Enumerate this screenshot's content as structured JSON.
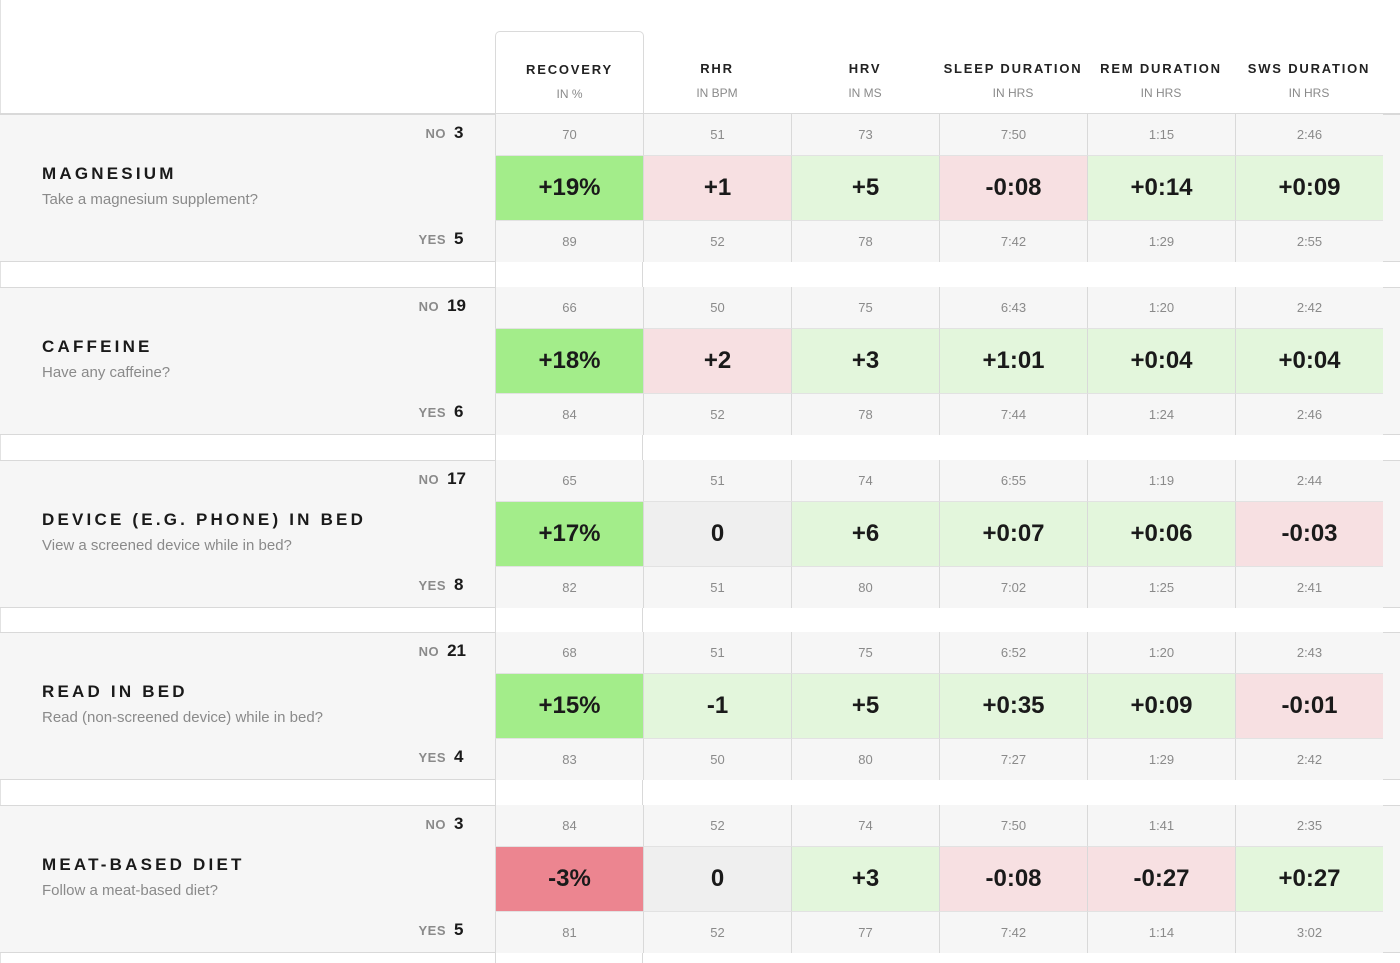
{
  "colors": {
    "strong_green": "#a3ed8a",
    "light_green": "#e3f6dc",
    "light_pink": "#f7e0e2",
    "strong_pink": "#ec8590",
    "neutral_gray": "#efefef"
  },
  "columns": [
    {
      "title": "RECOVERY",
      "unit": "IN %"
    },
    {
      "title": "RHR",
      "unit": "IN BPM"
    },
    {
      "title": "HRV",
      "unit": "IN MS"
    },
    {
      "title": "SLEEP DURATION",
      "unit": "IN HRS"
    },
    {
      "title": "REM DURATION",
      "unit": "IN HRS"
    },
    {
      "title": "SWS DURATION",
      "unit": "IN HRS"
    }
  ],
  "no_label": "NO",
  "yes_label": "YES",
  "behaviors": [
    {
      "title": "MAGNESIUM",
      "question": "Take a magnesium supplement?",
      "no_count": "3",
      "yes_count": "5",
      "no_values": [
        "70",
        "51",
        "73",
        "7:50",
        "1:15",
        "2:46"
      ],
      "diffs": [
        "+19%",
        "+1",
        "+5",
        "-0:08",
        "+0:14",
        "+0:09"
      ],
      "diff_colors": [
        "strong_green",
        "light_pink",
        "light_green",
        "light_pink",
        "light_green",
        "light_green"
      ],
      "yes_values": [
        "89",
        "52",
        "78",
        "7:42",
        "1:29",
        "2:55"
      ]
    },
    {
      "title": "CAFFEINE",
      "question": "Have any caffeine?",
      "no_count": "19",
      "yes_count": "6",
      "no_values": [
        "66",
        "50",
        "75",
        "6:43",
        "1:20",
        "2:42"
      ],
      "diffs": [
        "+18%",
        "+2",
        "+3",
        "+1:01",
        "+0:04",
        "+0:04"
      ],
      "diff_colors": [
        "strong_green",
        "light_pink",
        "light_green",
        "light_green",
        "light_green",
        "light_green"
      ],
      "yes_values": [
        "84",
        "52",
        "78",
        "7:44",
        "1:24",
        "2:46"
      ]
    },
    {
      "title": "DEVICE (E.G. PHONE) IN BED",
      "question": "View a screened device while in bed?",
      "no_count": "17",
      "yes_count": "8",
      "no_values": [
        "65",
        "51",
        "74",
        "6:55",
        "1:19",
        "2:44"
      ],
      "diffs": [
        "+17%",
        "0",
        "+6",
        "+0:07",
        "+0:06",
        "-0:03"
      ],
      "diff_colors": [
        "strong_green",
        "neutral_gray",
        "light_green",
        "light_green",
        "light_green",
        "light_pink"
      ],
      "yes_values": [
        "82",
        "51",
        "80",
        "7:02",
        "1:25",
        "2:41"
      ]
    },
    {
      "title": "READ IN BED",
      "question": "Read (non-screened device) while in bed?",
      "no_count": "21",
      "yes_count": "4",
      "no_values": [
        "68",
        "51",
        "75",
        "6:52",
        "1:20",
        "2:43"
      ],
      "diffs": [
        "+15%",
        "-1",
        "+5",
        "+0:35",
        "+0:09",
        "-0:01"
      ],
      "diff_colors": [
        "strong_green",
        "light_green",
        "light_green",
        "light_green",
        "light_green",
        "light_pink"
      ],
      "yes_values": [
        "83",
        "50",
        "80",
        "7:27",
        "1:29",
        "2:42"
      ]
    },
    {
      "title": "MEAT-BASED DIET",
      "question": "Follow a meat-based diet?",
      "no_count": "3",
      "yes_count": "5",
      "no_values": [
        "84",
        "52",
        "74",
        "7:50",
        "1:41",
        "2:35"
      ],
      "diffs": [
        "-3%",
        "0",
        "+3",
        "-0:08",
        "-0:27",
        "+0:27"
      ],
      "diff_colors": [
        "strong_pink",
        "neutral_gray",
        "light_green",
        "light_pink",
        "light_pink",
        "light_green"
      ],
      "yes_values": [
        "81",
        "52",
        "77",
        "7:42",
        "1:14",
        "3:02"
      ]
    }
  ]
}
